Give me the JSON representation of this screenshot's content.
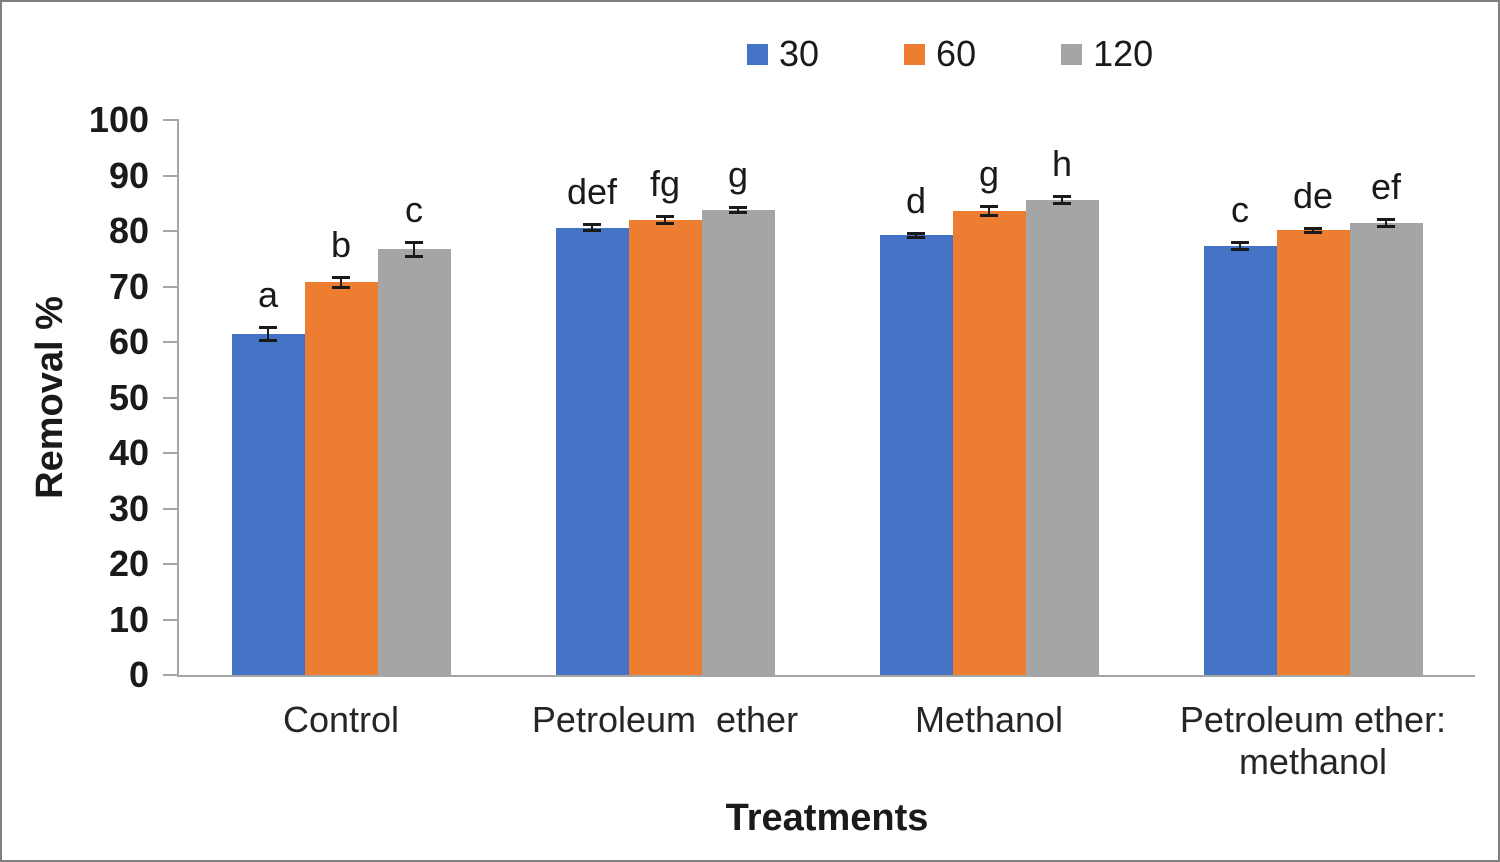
{
  "chart_data": {
    "type": "bar",
    "title": "",
    "xlabel": "Treatments",
    "ylabel": "Removal %",
    "ylim": [
      0,
      100
    ],
    "yticks": [
      0,
      10,
      20,
      30,
      40,
      50,
      60,
      70,
      80,
      90,
      100
    ],
    "grid": false,
    "legend_position": "top",
    "categories": [
      "Control",
      "Petroleum  ether",
      "Methanol",
      "Petroleum ether:\nmethanol"
    ],
    "series": [
      {
        "name": "30",
        "color": "#4472C4",
        "values": [
          61.4,
          80.6,
          79.2,
          77.3
        ],
        "errors": [
          1.1,
          0.5,
          0.2,
          0.6
        ],
        "letters": [
          "a",
          "def",
          "d",
          "c"
        ]
      },
      {
        "name": "60",
        "color": "#ED7D31",
        "values": [
          70.8,
          82.0,
          83.6,
          80.1
        ],
        "errors": [
          0.8,
          0.5,
          0.8,
          0.35
        ],
        "letters": [
          "b",
          "fg",
          "g",
          "de"
        ]
      },
      {
        "name": "120",
        "color": "#A5A5A5",
        "values": [
          76.7,
          83.8,
          85.6,
          81.4
        ],
        "errors": [
          1.2,
          0.4,
          0.5,
          0.5
        ],
        "letters": [
          "c",
          "g",
          "h",
          "ef"
        ]
      }
    ],
    "colors": {
      "axis": "#a6a6a6",
      "error_bar": "#1a1a1a",
      "text": "#1a1a1a",
      "figure_border": "#7f7f7f"
    }
  }
}
